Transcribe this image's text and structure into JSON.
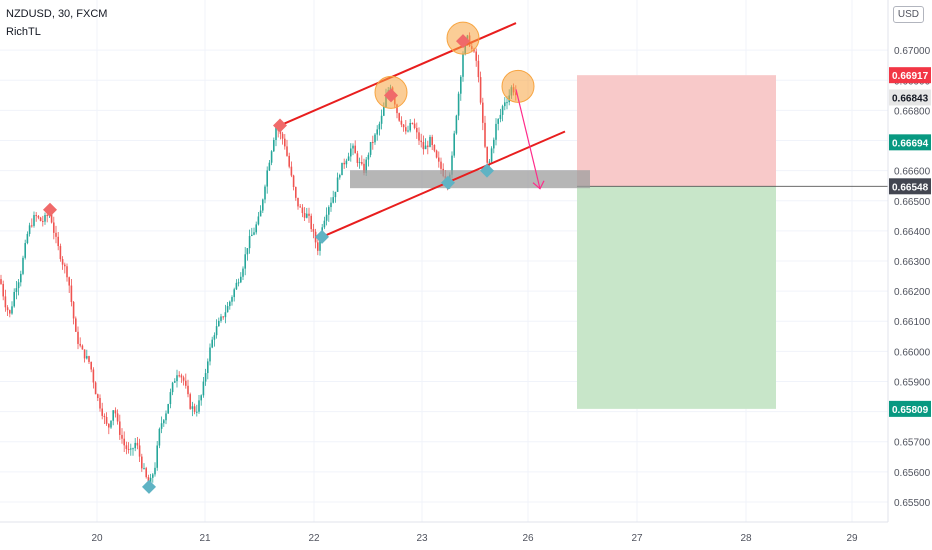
{
  "header": {
    "symbol_line": "NZDUSD, 30, FXCM",
    "author": "RichTL",
    "currency_button": "USD"
  },
  "colors": {
    "bull": "#26a69a",
    "bear": "#ef5350",
    "channel": "#e81e1e",
    "zone": "#9e9e9e",
    "stop": "#f8c9c9",
    "target": "#c8e6c9",
    "marker_orange": "#f7a440",
    "arrow": "#ff2b8a"
  },
  "chart_data": {
    "type": "candlestick",
    "title": "",
    "xlabel": "",
    "ylabel": "",
    "y_range": [
      0.6545,
      0.6715
    ],
    "x_ticks": [
      "20",
      "21",
      "22",
      "23",
      "26",
      "27",
      "28",
      "29"
    ],
    "y_ticks": [
      "0.67000",
      "0.66900",
      "0.66800",
      "0.66700",
      "0.66600",
      "0.66500",
      "0.66400",
      "0.66300",
      "0.66200",
      "0.66100",
      "0.66000",
      "0.65900",
      "0.65800",
      "0.65700",
      "0.65600",
      "0.65500"
    ],
    "price_labels": [
      {
        "value": "0.66917",
        "kind": "stop"
      },
      {
        "value": "0.66843",
        "kind": "last"
      },
      {
        "value": "0.66694",
        "kind": "mid"
      },
      {
        "value": "0.66548",
        "kind": "entry"
      },
      {
        "value": "0.65809",
        "kind": "target"
      }
    ],
    "price_path": [
      [
        0,
        0.6624
      ],
      [
        5,
        0.6616
      ],
      [
        10,
        0.6612
      ],
      [
        15,
        0.6621
      ],
      [
        20,
        0.6625
      ],
      [
        28,
        0.664
      ],
      [
        35,
        0.6645
      ],
      [
        42,
        0.6643
      ],
      [
        50,
        0.6646
      ],
      [
        55,
        0.6638
      ],
      [
        62,
        0.663
      ],
      [
        68,
        0.6625
      ],
      [
        72,
        0.6615
      ],
      [
        76,
        0.6605
      ],
      [
        82,
        0.66
      ],
      [
        90,
        0.6596
      ],
      [
        96,
        0.6586
      ],
      [
        102,
        0.658
      ],
      [
        108,
        0.6574
      ],
      [
        114,
        0.6582
      ],
      [
        118,
        0.6575
      ],
      [
        124,
        0.6569
      ],
      [
        130,
        0.6566
      ],
      [
        136,
        0.657
      ],
      [
        142,
        0.6562
      ],
      [
        149,
        0.6555
      ],
      [
        155,
        0.6562
      ],
      [
        160,
        0.6575
      ],
      [
        166,
        0.658
      ],
      [
        172,
        0.6588
      ],
      [
        178,
        0.6594
      ],
      [
        184,
        0.659
      ],
      [
        190,
        0.6582
      ],
      [
        196,
        0.658
      ],
      [
        202,
        0.6586
      ],
      [
        208,
        0.6598
      ],
      [
        214,
        0.6606
      ],
      [
        220,
        0.661
      ],
      [
        228,
        0.6615
      ],
      [
        236,
        0.6622
      ],
      [
        242,
        0.6627
      ],
      [
        248,
        0.6636
      ],
      [
        254,
        0.664
      ],
      [
        260,
        0.6645
      ],
      [
        266,
        0.6658
      ],
      [
        272,
        0.6668
      ],
      [
        276,
        0.6675
      ],
      [
        280,
        0.6672
      ],
      [
        284,
        0.667
      ],
      [
        290,
        0.666
      ],
      [
        296,
        0.665
      ],
      [
        302,
        0.6646
      ],
      [
        308,
        0.6645
      ],
      [
        314,
        0.6638
      ],
      [
        318,
        0.6634
      ],
      [
        322,
        0.6642
      ],
      [
        328,
        0.6648
      ],
      [
        334,
        0.6652
      ],
      [
        340,
        0.666
      ],
      [
        346,
        0.6664
      ],
      [
        352,
        0.6668
      ],
      [
        358,
        0.6663
      ],
      [
        364,
        0.666
      ],
      [
        370,
        0.6668
      ],
      [
        376,
        0.6672
      ],
      [
        382,
        0.6678
      ],
      [
        386,
        0.6684
      ],
      [
        390,
        0.6689
      ],
      [
        394,
        0.6684
      ],
      [
        398,
        0.6678
      ],
      [
        402,
        0.6676
      ],
      [
        406,
        0.6672
      ],
      [
        412,
        0.6676
      ],
      [
        418,
        0.6671
      ],
      [
        424,
        0.6667
      ],
      [
        430,
        0.667
      ],
      [
        436,
        0.6664
      ],
      [
        442,
        0.666
      ],
      [
        448,
        0.6656
      ],
      [
        452,
        0.6664
      ],
      [
        456,
        0.6678
      ],
      [
        460,
        0.669
      ],
      [
        464,
        0.6702
      ],
      [
        468,
        0.6704
      ],
      [
        472,
        0.67
      ],
      [
        476,
        0.6697
      ],
      [
        480,
        0.6686
      ],
      [
        484,
        0.667
      ],
      [
        488,
        0.666
      ],
      [
        492,
        0.6668
      ],
      [
        496,
        0.6675
      ],
      [
        500,
        0.6678
      ],
      [
        504,
        0.6683
      ],
      [
        508,
        0.6684
      ],
      [
        512,
        0.6688
      ],
      [
        516,
        0.6685
      ]
    ],
    "channel": {
      "upper": [
        [
          280,
          0.6675
        ],
        [
          516,
          0.6709
        ]
      ],
      "lower": [
        [
          322,
          0.6638
        ],
        [
          565,
          0.6673
        ]
      ]
    },
    "support_zone": {
      "from_x": 350,
      "to_x": 590,
      "low": 0.66555,
      "high": 0.66575
    },
    "peaks": [
      [
        391,
        0.6685
      ],
      [
        463,
        0.6703
      ],
      [
        518,
        0.6687
      ]
    ],
    "markers": [
      {
        "x": 50,
        "y": 0.6647,
        "color": "red"
      },
      {
        "x": 280,
        "y": 0.6675,
        "color": "red"
      },
      {
        "x": 391,
        "y": 0.6685,
        "color": "red"
      },
      {
        "x": 463,
        "y": 0.6703,
        "color": "red"
      },
      {
        "x": 149,
        "y": 0.6555,
        "color": "teal"
      },
      {
        "x": 322,
        "y": 0.6638,
        "color": "teal"
      },
      {
        "x": 448,
        "y": 0.6656,
        "color": "teal"
      },
      {
        "x": 487,
        "y": 0.666,
        "color": "teal"
      }
    ],
    "position": {
      "from_x": 577,
      "to_x": 776,
      "stop": 0.66917,
      "entry": 0.66548,
      "target": 0.65809
    },
    "arrow": {
      "from": [
        516,
        0.6687
      ],
      "to": [
        540,
        0.6654
      ]
    }
  }
}
